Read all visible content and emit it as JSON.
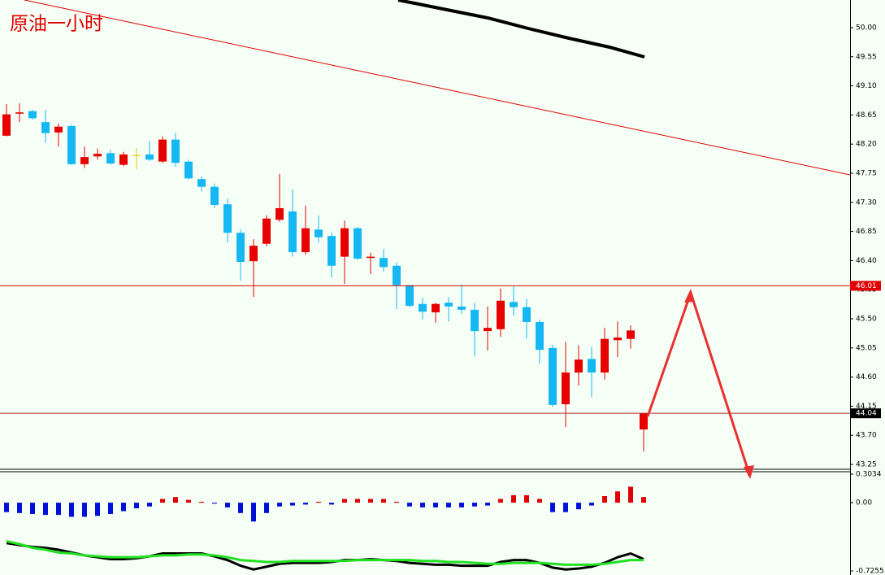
{
  "chart_data": [
    {
      "type": "candlestick",
      "title": "原油一小时",
      "open": [
        48.33,
        48.67,
        48.71,
        48.54,
        48.38,
        48.48,
        47.89,
        48.01,
        48.06,
        47.88,
        48.03,
        48.04,
        47.93,
        48.27,
        47.93,
        47.66,
        47.54,
        47.27,
        46.83,
        46.39,
        46.66,
        47.03,
        47.16,
        46.53,
        46.88,
        46.78,
        46.46,
        46.9,
        46.44,
        46.44,
        46.32,
        46.02,
        45.73,
        45.6,
        45.75,
        45.69,
        45.64,
        45.31,
        45.34,
        45.76,
        45.68,
        45.45,
        45.05,
        44.18,
        44.67,
        44.88,
        44.67,
        45.17,
        45.19,
        43.79
      ],
      "high": [
        48.82,
        48.83,
        48.73,
        48.73,
        48.52,
        48.5,
        48.16,
        48.13,
        48.11,
        48.08,
        48.14,
        48.25,
        48.32,
        48.37,
        47.96,
        47.7,
        47.59,
        47.36,
        46.88,
        46.73,
        47.1,
        47.74,
        47.5,
        47.25,
        47.1,
        46.83,
        47.02,
        46.92,
        46.52,
        46.58,
        46.37,
        46.02,
        45.83,
        45.75,
        45.83,
        46.03,
        45.75,
        45.69,
        45.97,
        46.0,
        45.81,
        45.49,
        45.1,
        45.14,
        45.09,
        45.07,
        45.36,
        45.46,
        45.4,
        44.04
      ],
      "low": [
        48.32,
        48.54,
        48.58,
        48.22,
        48.16,
        47.88,
        47.83,
        47.96,
        47.88,
        47.86,
        47.81,
        47.94,
        47.91,
        47.85,
        47.65,
        47.47,
        47.21,
        46.68,
        46.09,
        45.84,
        46.62,
        47.0,
        46.46,
        46.49,
        46.68,
        46.14,
        46.04,
        46.41,
        46.19,
        46.23,
        45.65,
        45.68,
        45.49,
        45.44,
        45.46,
        45.58,
        44.92,
        45.01,
        45.22,
        45.55,
        45.2,
        44.81,
        44.14,
        43.83,
        44.47,
        44.29,
        44.56,
        44.91,
        45.04,
        43.45
      ],
      "close": [
        48.66,
        48.69,
        48.6,
        48.37,
        48.47,
        47.89,
        48.0,
        48.05,
        47.9,
        48.04,
        48.03,
        47.96,
        48.27,
        47.91,
        47.67,
        47.54,
        47.26,
        46.83,
        46.38,
        46.63,
        47.05,
        47.21,
        46.53,
        46.9,
        46.76,
        46.32,
        46.9,
        46.43,
        46.46,
        46.3,
        46.02,
        45.7,
        45.61,
        45.73,
        45.69,
        45.64,
        45.31,
        45.36,
        45.78,
        45.68,
        45.45,
        45.02,
        44.17,
        44.67,
        44.87,
        44.67,
        45.19,
        45.21,
        45.32,
        44.04
      ],
      "up_color": "#e80000",
      "down_color": "#16b8f3",
      "doji_color": "#e8c000",
      "ylim": [
        43.175,
        50.427
      ],
      "yticks": [
        {
          "value": 50,
          "label": "50.00"
        },
        49.55,
        {
          "value": 49.1,
          "label": "49.10"
        },
        48.65,
        {
          "value": 48.2,
          "label": "48.20"
        },
        47.75,
        {
          "value": 47.3,
          "label": "47.30"
        },
        46.85,
        {
          "value": 46.4,
          "label": "46.40"
        },
        45.95,
        {
          "value": 45.5,
          "label": "45.50"
        },
        45.05,
        {
          "value": 44.6,
          "label": "44.60"
        },
        44.15,
        {
          "value": 43.7,
          "label": "43.70"
        },
        43.25
      ],
      "price_lines": [
        {
          "value": 46.01,
          "color": "#e00000",
          "tag_color": "#e00000"
        },
        {
          "value": 44.04,
          "color": "#b03030",
          "tag_color": "#000000"
        }
      ]
    },
    {
      "type": "histogram-lines",
      "values": [
        -0.1,
        -0.11,
        -0.12,
        -0.13,
        -0.13,
        -0.15,
        -0.15,
        -0.14,
        -0.12,
        -0.09,
        -0.06,
        -0.04,
        0.04,
        0.06,
        0.03,
        0.01,
        -0.01,
        -0.05,
        -0.11,
        -0.2,
        -0.11,
        -0.04,
        -0.03,
        -0.02,
        0.01,
        -0.02,
        0.04,
        0.04,
        0.04,
        0.04,
        0.01,
        -0.04,
        -0.05,
        -0.05,
        -0.05,
        -0.05,
        -0.04,
        -0.03,
        0.04,
        0.08,
        0.08,
        0.04,
        -0.1,
        -0.1,
        -0.07,
        -0.03,
        0.07,
        0.12,
        0.17,
        0.06
      ],
      "positive_color": "#e00000",
      "negative_color": "#0010d8",
      "lines": [
        {
          "color": "#000000",
          "values": [
            -0.43,
            -0.45,
            -0.47,
            -0.48,
            -0.5,
            -0.53,
            -0.56,
            -0.58,
            -0.6,
            -0.6,
            -0.59,
            -0.57,
            -0.54,
            -0.54,
            -0.54,
            -0.54,
            -0.57,
            -0.61,
            -0.67,
            -0.71,
            -0.68,
            -0.65,
            -0.64,
            -0.64,
            -0.64,
            -0.63,
            -0.61,
            -0.61,
            -0.6,
            -0.61,
            -0.62,
            -0.64,
            -0.65,
            -0.66,
            -0.66,
            -0.67,
            -0.67,
            -0.67,
            -0.63,
            -0.61,
            -0.61,
            -0.64,
            -0.69,
            -0.71,
            -0.7,
            -0.68,
            -0.64,
            -0.58,
            -0.54,
            -0.6
          ]
        },
        {
          "color": "#22e022",
          "values": [
            -0.41,
            -0.44,
            -0.48,
            -0.5,
            -0.53,
            -0.54,
            -0.56,
            -0.57,
            -0.58,
            -0.58,
            -0.58,
            -0.57,
            -0.56,
            -0.56,
            -0.55,
            -0.55,
            -0.56,
            -0.58,
            -0.61,
            -0.62,
            -0.63,
            -0.63,
            -0.62,
            -0.62,
            -0.62,
            -0.62,
            -0.62,
            -0.61,
            -0.61,
            -0.61,
            -0.61,
            -0.61,
            -0.62,
            -0.62,
            -0.63,
            -0.63,
            -0.64,
            -0.65,
            -0.65,
            -0.64,
            -0.64,
            -0.64,
            -0.65,
            -0.66,
            -0.66,
            -0.66,
            -0.65,
            -0.63,
            -0.61,
            -0.61
          ]
        }
      ],
      "ylim": [
        -0.7255,
        0.3034
      ],
      "yticks": [
        0.3034,
        {
          "value": 0,
          "label": "0.00"
        },
        -0.7255
      ]
    }
  ]
}
